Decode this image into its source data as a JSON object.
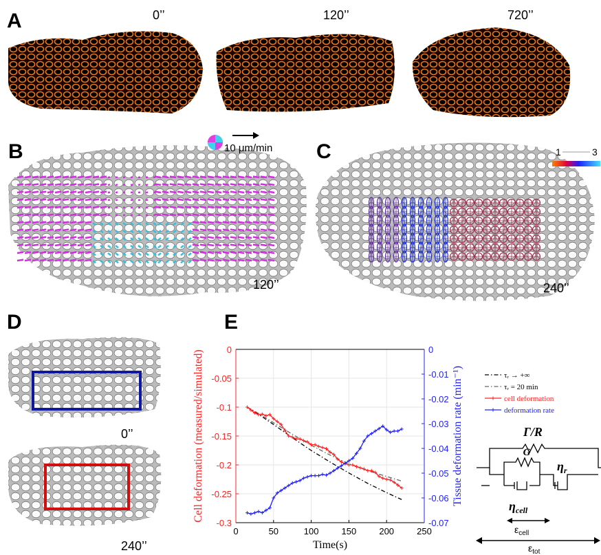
{
  "panels": {
    "A": {
      "label": "A",
      "times": [
        "0’’",
        "120’’",
        "720’’"
      ]
    },
    "B": {
      "label": "B",
      "scale": "10 μm/min",
      "time": "120’’"
    },
    "C": {
      "label": "C",
      "colorbar": [
        "1",
        "3"
      ],
      "time": "240’’"
    },
    "D": {
      "label": "D",
      "times": [
        "0’’",
        "240’’"
      ]
    },
    "E": {
      "label": "E"
    }
  },
  "chart_data": {
    "type": "line",
    "xlabel": "Time(s)",
    "ylabel": "Cell deformation (measured/simulated)",
    "y2label": "Tissue deformation rate (min⁻¹)",
    "xlim": [
      0,
      250
    ],
    "xticks": [
      0,
      50,
      100,
      150,
      200,
      250
    ],
    "ylim": [
      -0.3,
      0
    ],
    "yticks": [
      0,
      -0.05,
      -0.1,
      -0.15,
      -0.2,
      -0.25,
      -0.3
    ],
    "y2lim": [
      -0.07,
      0
    ],
    "y2ticks": [
      0,
      -0.01,
      -0.02,
      -0.03,
      -0.04,
      -0.05,
      -0.06,
      -0.07
    ],
    "grid": true,
    "legend": "outside right",
    "series": [
      {
        "name": "τᵣ → +∞",
        "color": "#000000",
        "linestyle": "dashdot",
        "x": [
          15,
          25,
          50,
          75,
          100,
          125,
          150,
          175,
          200,
          220
        ],
        "values": [
          -0.1,
          -0.108,
          -0.13,
          -0.153,
          -0.175,
          -0.195,
          -0.214,
          -0.232,
          -0.248,
          -0.26
        ]
      },
      {
        "name": "τᵣ = 20 min",
        "color": "#666666",
        "linestyle": "dashdot",
        "x": [
          15,
          25,
          50,
          75,
          100,
          125,
          150,
          175,
          200,
          220
        ],
        "values": [
          -0.1,
          -0.107,
          -0.127,
          -0.147,
          -0.166,
          -0.183,
          -0.198,
          -0.21,
          -0.22,
          -0.228
        ]
      },
      {
        "name": "cell deformation",
        "color": "#ff2020",
        "linestyle": "solid",
        "marker": "+",
        "x": [
          15,
          20,
          25,
          30,
          35,
          40,
          45,
          50,
          55,
          60,
          65,
          70,
          75,
          80,
          85,
          90,
          95,
          100,
          105,
          110,
          115,
          120,
          125,
          130,
          135,
          140,
          145,
          150,
          155,
          160,
          165,
          170,
          175,
          180,
          185,
          190,
          195,
          200,
          205,
          210,
          215,
          220
        ],
        "values": [
          -0.1,
          -0.105,
          -0.11,
          -0.113,
          -0.112,
          -0.115,
          -0.113,
          -0.12,
          -0.125,
          -0.13,
          -0.14,
          -0.15,
          -0.152,
          -0.155,
          -0.155,
          -0.158,
          -0.16,
          -0.165,
          -0.165,
          -0.168,
          -0.17,
          -0.172,
          -0.178,
          -0.182,
          -0.19,
          -0.195,
          -0.198,
          -0.2,
          -0.2,
          -0.203,
          -0.205,
          -0.207,
          -0.21,
          -0.21,
          -0.213,
          -0.22,
          -0.223,
          -0.225,
          -0.226,
          -0.23,
          -0.235,
          -0.24
        ]
      },
      {
        "name": "deformation rate",
        "color": "#2020ff",
        "linestyle": "solid",
        "marker": "+",
        "axis": "y2",
        "x": [
          15,
          20,
          25,
          30,
          35,
          40,
          45,
          50,
          55,
          60,
          65,
          70,
          75,
          80,
          85,
          90,
          95,
          100,
          105,
          110,
          115,
          120,
          125,
          130,
          135,
          140,
          145,
          150,
          155,
          160,
          165,
          170,
          175,
          180,
          185,
          190,
          195,
          200,
          205,
          210,
          215,
          220
        ],
        "values": [
          -0.066,
          -0.0665,
          -0.066,
          -0.0655,
          -0.066,
          -0.065,
          -0.064,
          -0.06,
          -0.058,
          -0.057,
          -0.056,
          -0.055,
          -0.054,
          -0.0535,
          -0.053,
          -0.052,
          -0.0515,
          -0.051,
          -0.051,
          -0.051,
          -0.0505,
          -0.0508,
          -0.05,
          -0.049,
          -0.048,
          -0.047,
          -0.046,
          -0.045,
          -0.044,
          -0.042,
          -0.04,
          -0.037,
          -0.035,
          -0.034,
          -0.033,
          -0.032,
          -0.031,
          -0.0325,
          -0.0335,
          -0.033,
          -0.033,
          -0.0322
        ]
      }
    ]
  },
  "model": {
    "gamma_r": "Γ/R",
    "g": "G",
    "eta_r": {
      "symbol": "η",
      "sub": "r"
    },
    "eta_cell": {
      "symbol": "η",
      "sub": "cell"
    },
    "eps_cell": {
      "symbol": "ε",
      "sub": "cell"
    },
    "eps_tot": {
      "symbol": "ε",
      "sub": "tot"
    }
  }
}
